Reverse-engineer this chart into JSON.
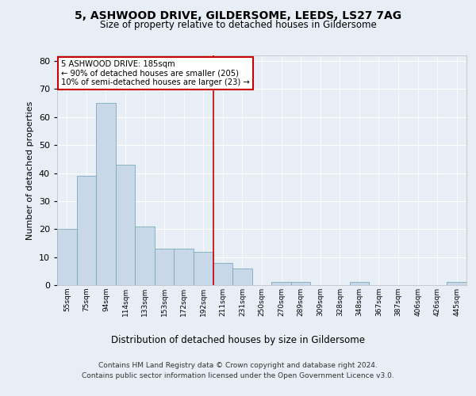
{
  "title_line1": "5, ASHWOOD DRIVE, GILDERSOME, LEEDS, LS27 7AG",
  "title_line2": "Size of property relative to detached houses in Gildersome",
  "xlabel": "Distribution of detached houses by size in Gildersome",
  "ylabel": "Number of detached properties",
  "footer_line1": "Contains HM Land Registry data © Crown copyright and database right 2024.",
  "footer_line2": "Contains public sector information licensed under the Open Government Licence v3.0.",
  "bar_labels": [
    "55sqm",
    "75sqm",
    "94sqm",
    "114sqm",
    "133sqm",
    "153sqm",
    "172sqm",
    "192sqm",
    "211sqm",
    "231sqm",
    "250sqm",
    "270sqm",
    "289sqm",
    "309sqm",
    "328sqm",
    "348sqm",
    "367sqm",
    "387sqm",
    "406sqm",
    "426sqm",
    "445sqm"
  ],
  "bar_values": [
    20,
    39,
    65,
    43,
    21,
    13,
    13,
    12,
    8,
    6,
    0,
    1,
    1,
    0,
    0,
    1,
    0,
    0,
    0,
    0,
    1
  ],
  "bar_color": "#c8d8e8",
  "bar_edge_color": "#7aaabb",
  "ylim": [
    0,
    82
  ],
  "yticks": [
    0,
    10,
    20,
    30,
    40,
    50,
    60,
    70,
    80
  ],
  "property_label": "5 ASHWOOD DRIVE: 185sqm",
  "annotation_line1": "← 90% of detached houses are smaller (205)",
  "annotation_line2": "10% of semi-detached houses are larger (23) →",
  "vline_bar_index": 7,
  "vline_color": "#cc0000",
  "annotation_box_color": "#ffffff",
  "annotation_border_color": "#cc0000",
  "bg_color": "#e8eef5",
  "plot_bg_color": "#e8eef5",
  "grid_color": "#ffffff"
}
